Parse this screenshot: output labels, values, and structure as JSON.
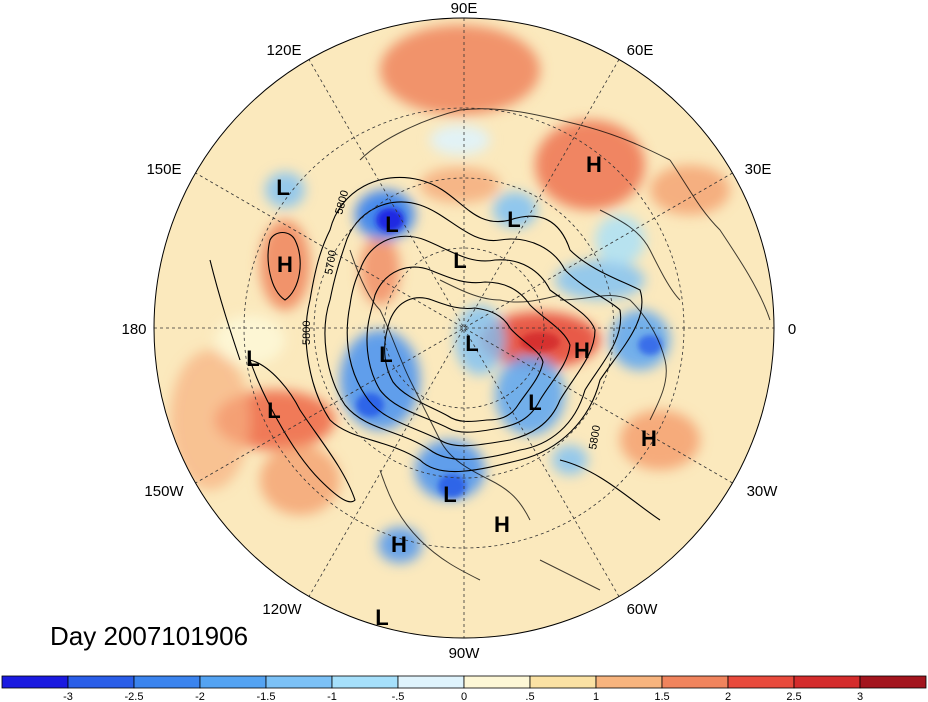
{
  "title": "Day 2007101906",
  "longitude_labels": [
    {
      "text": "90E"
    },
    {
      "text": "60E"
    },
    {
      "text": "30E"
    },
    {
      "text": "0"
    },
    {
      "text": "30W"
    },
    {
      "text": "60W"
    },
    {
      "text": "90W"
    },
    {
      "text": "120W"
    },
    {
      "text": "150W"
    },
    {
      "text": "180"
    },
    {
      "text": "150E"
    },
    {
      "text": "120E"
    }
  ],
  "pressure_centers": [
    {
      "type": "H",
      "region": "central-siberia"
    },
    {
      "type": "L",
      "region": "northeast-siberia"
    },
    {
      "type": "L",
      "region": "western-siberia"
    },
    {
      "type": "L",
      "region": "north-pacific-west"
    },
    {
      "type": "H",
      "region": "north-pacific"
    },
    {
      "type": "L",
      "region": "arctic-russia"
    },
    {
      "type": "L",
      "region": "canadian-arctic"
    },
    {
      "type": "L",
      "region": "beaufort"
    },
    {
      "type": "L",
      "region": "alaska"
    },
    {
      "type": "H",
      "region": "greenland-iceland"
    },
    {
      "type": "L",
      "region": "hudson-bay"
    },
    {
      "type": "H",
      "region": "central-atlantic"
    },
    {
      "type": "L",
      "region": "central-pacific"
    },
    {
      "type": "H",
      "region": "northeast-pacific"
    },
    {
      "type": "H",
      "region": "caribbean"
    },
    {
      "type": "L",
      "region": "eastern-pacific"
    },
    {
      "type": "L",
      "region": "tropical-pacific"
    }
  ],
  "contour_labels": [
    "5800",
    "5700",
    "5800",
    "5800"
  ],
  "colorbar": {
    "ticks": [
      "-3",
      "-2.5",
      "-2",
      "-1.5",
      "-1",
      "-.5",
      "0",
      ".5",
      "1",
      "1.5",
      "2",
      "2.5",
      "3"
    ],
    "colors": [
      "#1a1ae0",
      "#2a5ee8",
      "#3b84ee",
      "#54a3f2",
      "#7cc1f6",
      "#a6e0fb",
      "#dff3fc",
      "#fdf7d6",
      "#fbe2a4",
      "#f7b47e",
      "#f0845d",
      "#e84a3c",
      "#d42c2c",
      "#a3151e"
    ]
  },
  "colors": {
    "background": "#ffffff",
    "neutral_fill": "#fbe9bd"
  }
}
